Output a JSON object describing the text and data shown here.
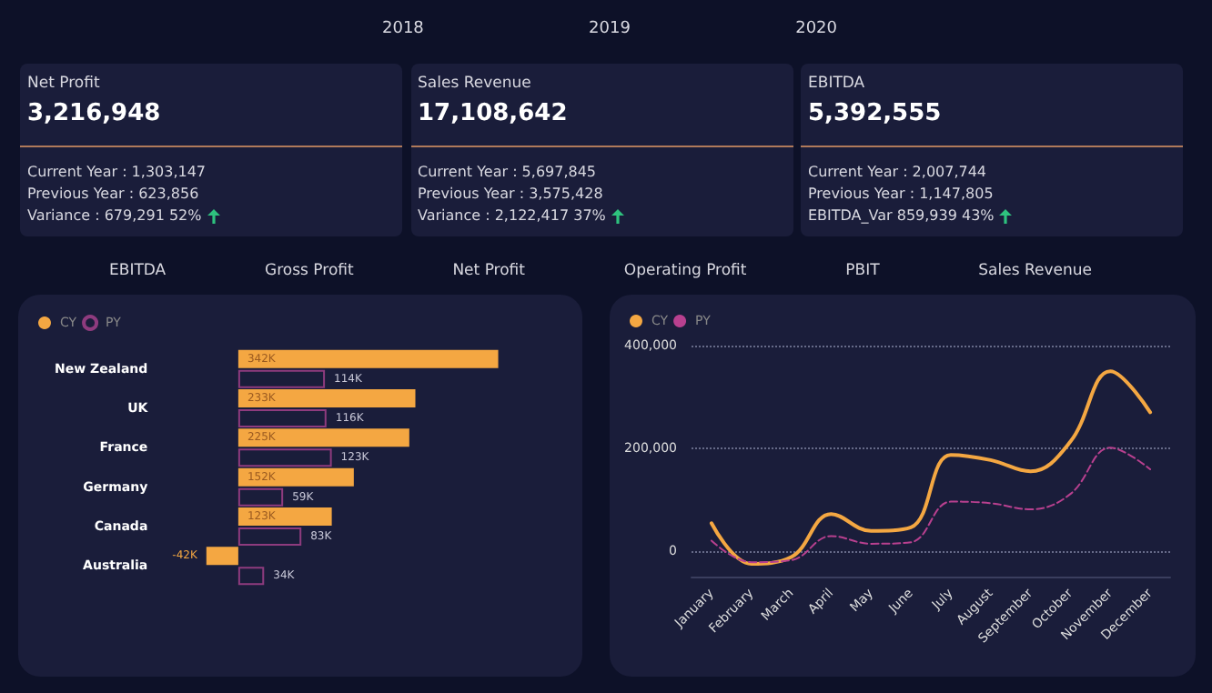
{
  "chart_data": [
    {
      "type": "other",
      "annotations": [
        "2018",
        "2019",
        "2020",
        "Net Profit",
        "3,216,948",
        "Current Year : 1,303,147",
        "Previous Year : 623,856",
        "Variance : 679,291 52%",
        "Sales Revenue",
        "17,108,642",
        "Current Year : 5,697,845",
        "Previous Year : 3,575,428",
        "Variance : 2,122,417 37%",
        "EBITDA",
        "5,392,555",
        "Current Year : 2,007,744",
        "Previous Year : 1,147,805",
        "EBITDA_Var 859,939 43%",
        "EBITDA",
        "Gross Profit",
        "Net Profit",
        "Operating Profit",
        "PBIT",
        "Sales Revenue"
      ]
    },
    {
      "type": "bar",
      "orientation": "horizontal",
      "categories": [
        "New Zealand",
        "UK",
        "France",
        "Germany",
        "Canada",
        "Australia"
      ],
      "legend": "top left",
      "series": [
        {
          "name": "CY",
          "color": "#f4a742",
          "values": [
            342,
            233,
            225,
            152,
            123,
            -42
          ],
          "value_labels": [
            "342K",
            "233K",
            "225K",
            "152K",
            "123K",
            "-42K"
          ]
        },
        {
          "name": "PY",
          "color": "#8e3b7e",
          "values": [
            114,
            116,
            123,
            59,
            83,
            34
          ],
          "value_labels": [
            "114K",
            "116K",
            "123K",
            "59K",
            "83K",
            "34K"
          ]
        }
      ]
    },
    {
      "type": "line",
      "categories": [
        "January",
        "February",
        "March",
        "April",
        "May",
        "June",
        "July",
        "August",
        "September",
        "October",
        "November",
        "December"
      ],
      "legend": "top left",
      "grid": "y",
      "ylim": [
        -50000,
        400000
      ],
      "yticks": [
        0,
        {
          "value": 200000,
          "label": "200,000"
        },
        {
          "value": 400000,
          "label": "400,000"
        }
      ],
      "series": [
        {
          "name": "CY",
          "color": "#f4a742",
          "line_style": "solid",
          "values": [
            54000,
            -25000,
            -12000,
            72000,
            39000,
            46000,
            187000,
            177000,
            155000,
            213000,
            350000,
            270000
          ]
        },
        {
          "name": "PY",
          "color": "#b8408f",
          "line_style": "dashed",
          "values": [
            20000,
            -22000,
            -18000,
            29000,
            14000,
            17000,
            96000,
            93000,
            81000,
            111000,
            201000,
            159000
          ]
        }
      ]
    }
  ]
}
